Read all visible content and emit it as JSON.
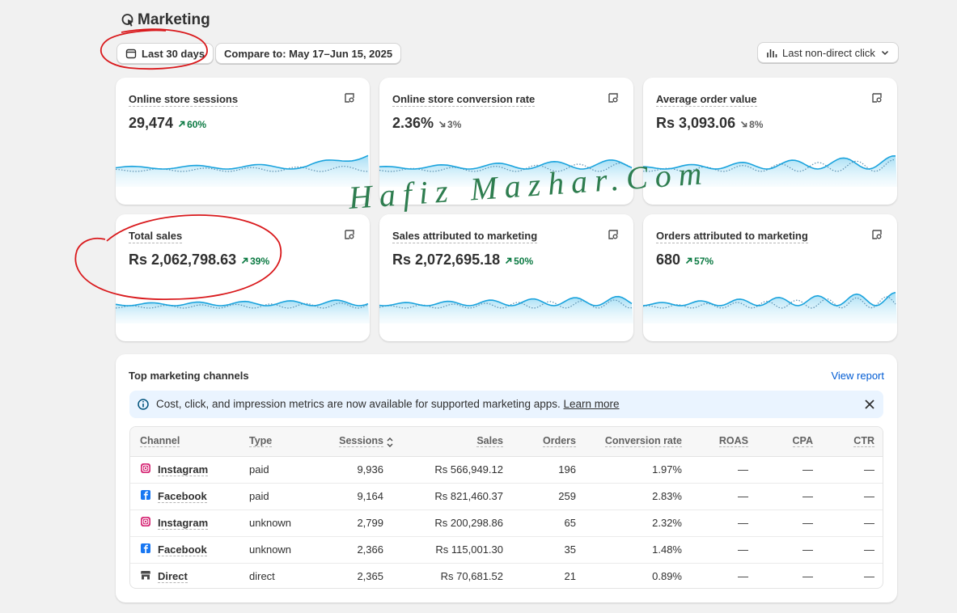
{
  "header": {
    "title": "Marketing"
  },
  "toolbar": {
    "date_range": "Last 30 days",
    "compare": "Compare to: May 17–Jun 15, 2025",
    "attribution": "Last non-direct click"
  },
  "metrics": [
    {
      "label": "Online store sessions",
      "value": "29,474",
      "change": "60%",
      "direction": "up"
    },
    {
      "label": "Online store conversion rate",
      "value": "2.36%",
      "change": "3%",
      "direction": "down"
    },
    {
      "label": "Average order value",
      "value": "Rs 3,093.06",
      "change": "8%",
      "direction": "down"
    },
    {
      "label": "Total sales",
      "value": "Rs 2,062,798.63",
      "change": "39%",
      "direction": "up"
    },
    {
      "label": "Sales attributed to marketing",
      "value": "Rs 2,072,695.18",
      "change": "50%",
      "direction": "up"
    },
    {
      "label": "Orders attributed to marketing",
      "value": "680",
      "change": "57%",
      "direction": "up"
    }
  ],
  "channels": {
    "title": "Top marketing channels",
    "link": "View report",
    "banner": {
      "text": "Cost, click, and impression metrics are now available for supported marketing apps.",
      "link": "Learn more"
    },
    "columns": [
      "Channel",
      "Type",
      "Sessions",
      "Sales",
      "Orders",
      "Conversion rate",
      "ROAS",
      "CPA",
      "CTR"
    ],
    "rows": [
      [
        "Instagram",
        "paid",
        "9,936",
        "Rs 566,949.12",
        "196",
        "1.97%",
        "—",
        "—",
        "—"
      ],
      [
        "Facebook",
        "paid",
        "9,164",
        "Rs 821,460.37",
        "259",
        "2.83%",
        "—",
        "—",
        "—"
      ],
      [
        "Instagram",
        "unknown",
        "2,799",
        "Rs 200,298.86",
        "65",
        "2.32%",
        "—",
        "—",
        "—"
      ],
      [
        "Facebook",
        "unknown",
        "2,366",
        "Rs 115,001.30",
        "35",
        "1.48%",
        "—",
        "—",
        "—"
      ],
      [
        "Direct",
        "direct",
        "2,365",
        "Rs 70,681.52",
        "21",
        "0.89%",
        "—",
        "—",
        "—"
      ]
    ]
  },
  "annotation": "Hafiz Mazhar.Com"
}
